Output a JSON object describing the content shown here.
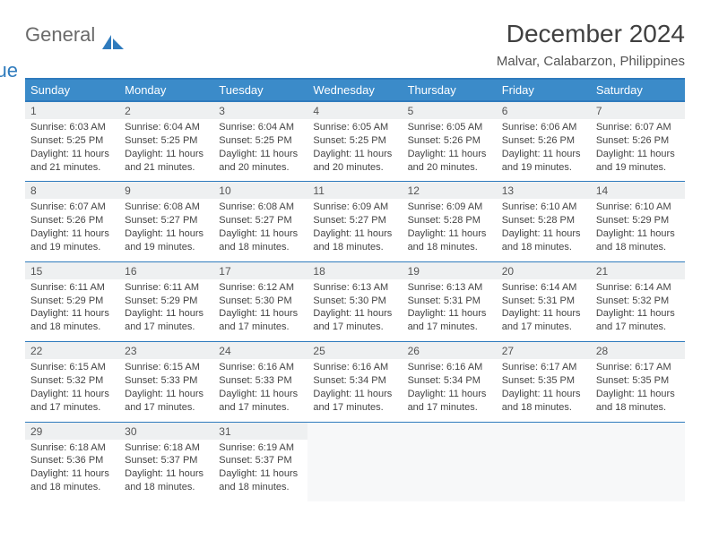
{
  "brand": {
    "part1": "General",
    "part2": "Blue"
  },
  "title": "December 2024",
  "location": "Malvar, Calabarzon, Philippines",
  "day_headers": [
    "Sunday",
    "Monday",
    "Tuesday",
    "Wednesday",
    "Thursday",
    "Friday",
    "Saturday"
  ],
  "colors": {
    "header_bg": "#3b8bc9",
    "header_border": "#2f7bbd",
    "daynum_bg": "#eef0f1",
    "brand_blue": "#2f7bbd",
    "brand_gray": "#6a6a6a"
  },
  "weeks": [
    [
      {
        "n": "1",
        "sr": "Sunrise: 6:03 AM",
        "ss": "Sunset: 5:25 PM",
        "d1": "Daylight: 11 hours",
        "d2": "and 21 minutes."
      },
      {
        "n": "2",
        "sr": "Sunrise: 6:04 AM",
        "ss": "Sunset: 5:25 PM",
        "d1": "Daylight: 11 hours",
        "d2": "and 21 minutes."
      },
      {
        "n": "3",
        "sr": "Sunrise: 6:04 AM",
        "ss": "Sunset: 5:25 PM",
        "d1": "Daylight: 11 hours",
        "d2": "and 20 minutes."
      },
      {
        "n": "4",
        "sr": "Sunrise: 6:05 AM",
        "ss": "Sunset: 5:25 PM",
        "d1": "Daylight: 11 hours",
        "d2": "and 20 minutes."
      },
      {
        "n": "5",
        "sr": "Sunrise: 6:05 AM",
        "ss": "Sunset: 5:26 PM",
        "d1": "Daylight: 11 hours",
        "d2": "and 20 minutes."
      },
      {
        "n": "6",
        "sr": "Sunrise: 6:06 AM",
        "ss": "Sunset: 5:26 PM",
        "d1": "Daylight: 11 hours",
        "d2": "and 19 minutes."
      },
      {
        "n": "7",
        "sr": "Sunrise: 6:07 AM",
        "ss": "Sunset: 5:26 PM",
        "d1": "Daylight: 11 hours",
        "d2": "and 19 minutes."
      }
    ],
    [
      {
        "n": "8",
        "sr": "Sunrise: 6:07 AM",
        "ss": "Sunset: 5:26 PM",
        "d1": "Daylight: 11 hours",
        "d2": "and 19 minutes."
      },
      {
        "n": "9",
        "sr": "Sunrise: 6:08 AM",
        "ss": "Sunset: 5:27 PM",
        "d1": "Daylight: 11 hours",
        "d2": "and 19 minutes."
      },
      {
        "n": "10",
        "sr": "Sunrise: 6:08 AM",
        "ss": "Sunset: 5:27 PM",
        "d1": "Daylight: 11 hours",
        "d2": "and 18 minutes."
      },
      {
        "n": "11",
        "sr": "Sunrise: 6:09 AM",
        "ss": "Sunset: 5:27 PM",
        "d1": "Daylight: 11 hours",
        "d2": "and 18 minutes."
      },
      {
        "n": "12",
        "sr": "Sunrise: 6:09 AM",
        "ss": "Sunset: 5:28 PM",
        "d1": "Daylight: 11 hours",
        "d2": "and 18 minutes."
      },
      {
        "n": "13",
        "sr": "Sunrise: 6:10 AM",
        "ss": "Sunset: 5:28 PM",
        "d1": "Daylight: 11 hours",
        "d2": "and 18 minutes."
      },
      {
        "n": "14",
        "sr": "Sunrise: 6:10 AM",
        "ss": "Sunset: 5:29 PM",
        "d1": "Daylight: 11 hours",
        "d2": "and 18 minutes."
      }
    ],
    [
      {
        "n": "15",
        "sr": "Sunrise: 6:11 AM",
        "ss": "Sunset: 5:29 PM",
        "d1": "Daylight: 11 hours",
        "d2": "and 18 minutes."
      },
      {
        "n": "16",
        "sr": "Sunrise: 6:11 AM",
        "ss": "Sunset: 5:29 PM",
        "d1": "Daylight: 11 hours",
        "d2": "and 17 minutes."
      },
      {
        "n": "17",
        "sr": "Sunrise: 6:12 AM",
        "ss": "Sunset: 5:30 PM",
        "d1": "Daylight: 11 hours",
        "d2": "and 17 minutes."
      },
      {
        "n": "18",
        "sr": "Sunrise: 6:13 AM",
        "ss": "Sunset: 5:30 PM",
        "d1": "Daylight: 11 hours",
        "d2": "and 17 minutes."
      },
      {
        "n": "19",
        "sr": "Sunrise: 6:13 AM",
        "ss": "Sunset: 5:31 PM",
        "d1": "Daylight: 11 hours",
        "d2": "and 17 minutes."
      },
      {
        "n": "20",
        "sr": "Sunrise: 6:14 AM",
        "ss": "Sunset: 5:31 PM",
        "d1": "Daylight: 11 hours",
        "d2": "and 17 minutes."
      },
      {
        "n": "21",
        "sr": "Sunrise: 6:14 AM",
        "ss": "Sunset: 5:32 PM",
        "d1": "Daylight: 11 hours",
        "d2": "and 17 minutes."
      }
    ],
    [
      {
        "n": "22",
        "sr": "Sunrise: 6:15 AM",
        "ss": "Sunset: 5:32 PM",
        "d1": "Daylight: 11 hours",
        "d2": "and 17 minutes."
      },
      {
        "n": "23",
        "sr": "Sunrise: 6:15 AM",
        "ss": "Sunset: 5:33 PM",
        "d1": "Daylight: 11 hours",
        "d2": "and 17 minutes."
      },
      {
        "n": "24",
        "sr": "Sunrise: 6:16 AM",
        "ss": "Sunset: 5:33 PM",
        "d1": "Daylight: 11 hours",
        "d2": "and 17 minutes."
      },
      {
        "n": "25",
        "sr": "Sunrise: 6:16 AM",
        "ss": "Sunset: 5:34 PM",
        "d1": "Daylight: 11 hours",
        "d2": "and 17 minutes."
      },
      {
        "n": "26",
        "sr": "Sunrise: 6:16 AM",
        "ss": "Sunset: 5:34 PM",
        "d1": "Daylight: 11 hours",
        "d2": "and 17 minutes."
      },
      {
        "n": "27",
        "sr": "Sunrise: 6:17 AM",
        "ss": "Sunset: 5:35 PM",
        "d1": "Daylight: 11 hours",
        "d2": "and 18 minutes."
      },
      {
        "n": "28",
        "sr": "Sunrise: 6:17 AM",
        "ss": "Sunset: 5:35 PM",
        "d1": "Daylight: 11 hours",
        "d2": "and 18 minutes."
      }
    ],
    [
      {
        "n": "29",
        "sr": "Sunrise: 6:18 AM",
        "ss": "Sunset: 5:36 PM",
        "d1": "Daylight: 11 hours",
        "d2": "and 18 minutes."
      },
      {
        "n": "30",
        "sr": "Sunrise: 6:18 AM",
        "ss": "Sunset: 5:37 PM",
        "d1": "Daylight: 11 hours",
        "d2": "and 18 minutes."
      },
      {
        "n": "31",
        "sr": "Sunrise: 6:19 AM",
        "ss": "Sunset: 5:37 PM",
        "d1": "Daylight: 11 hours",
        "d2": "and 18 minutes."
      },
      null,
      null,
      null,
      null
    ]
  ]
}
